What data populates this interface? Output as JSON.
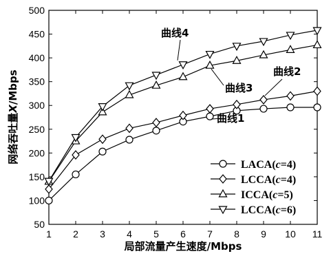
{
  "chart_data": {
    "type": "line",
    "xlabel": "局部流量产生速度/Mbps",
    "ylabel": "网络吞吐量X/Mbps",
    "ylabel_parts": [
      "网络吞吐量",
      "X",
      "/Mbps"
    ],
    "x": [
      1,
      2,
      3,
      4,
      5,
      6,
      7,
      8,
      9,
      10,
      11
    ],
    "xlim": [
      1,
      11
    ],
    "ylim": [
      50,
      500
    ],
    "yticks": [
      50,
      100,
      150,
      200,
      250,
      300,
      350,
      400,
      450,
      500
    ],
    "grid": false,
    "legend_position": "bottom-right",
    "series": [
      {
        "name": "LACA(c=4)",
        "name_parts": [
          "LACA(",
          "c",
          "=4)"
        ],
        "marker": "circle",
        "values": [
          100,
          155,
          203,
          228,
          247,
          266,
          277,
          289,
          293,
          296,
          296
        ]
      },
      {
        "name": "LCCA(c=4)",
        "name_parts": [
          "LCCA(",
          "c",
          "=4)"
        ],
        "marker": "diamond",
        "values": [
          124,
          196,
          229,
          252,
          264,
          279,
          293,
          302,
          312,
          320,
          330
        ]
      },
      {
        "name": "ICCA(c=5)",
        "name_parts": [
          "ICCA(",
          "c",
          "=5)"
        ],
        "marker": "triangle-up",
        "values": [
          140,
          225,
          286,
          322,
          342,
          360,
          384,
          394,
          406,
          417,
          427
        ]
      },
      {
        "name": "LCCA(c=6)",
        "name_parts": [
          "LCCA(",
          "c",
          "=6)"
        ],
        "marker": "triangle-down",
        "values": [
          141,
          233,
          298,
          342,
          364,
          386,
          408,
          425,
          435,
          448,
          458
        ]
      }
    ],
    "annotations": [
      {
        "text": "曲线4",
        "series": 3,
        "at_x": 6
      },
      {
        "text": "曲线3",
        "series": 2,
        "at_x": 7
      },
      {
        "text": "曲线2",
        "series": 1,
        "at_x": 9
      },
      {
        "text": "曲线1",
        "series": 0,
        "at_x": 7
      }
    ]
  }
}
